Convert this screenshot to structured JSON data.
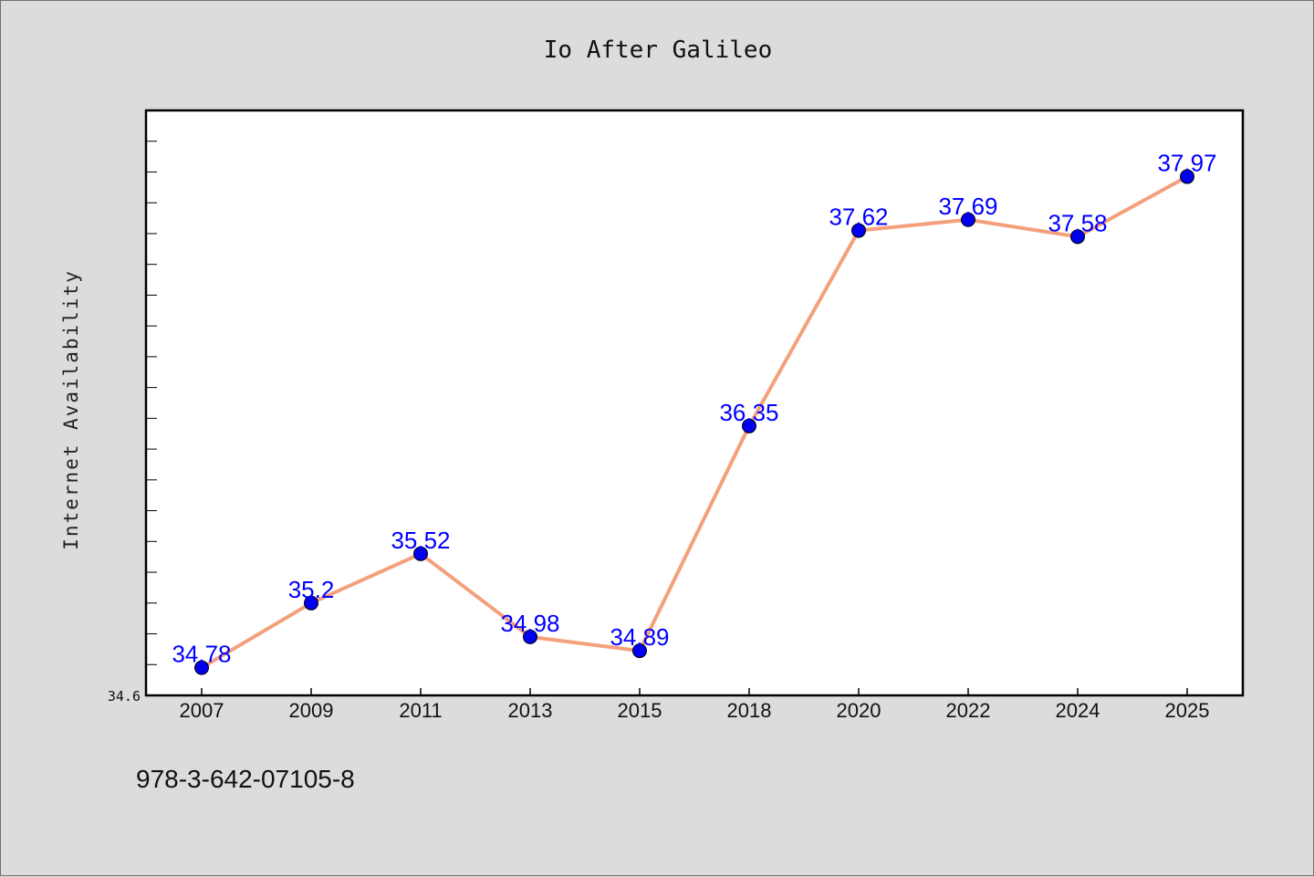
{
  "chart_data": {
    "type": "line",
    "title": "Io After Galileo",
    "xlabel": "",
    "ylabel": "Internet Availability",
    "categories": [
      "2007",
      "2009",
      "2011",
      "2013",
      "2015",
      "2018",
      "2020",
      "2022",
      "2024",
      "2025"
    ],
    "series": [
      {
        "values": [
          34.78,
          35.2,
          35.52,
          34.98,
          34.89,
          36.35,
          37.62,
          37.69,
          37.58,
          37.97
        ],
        "labels": [
          "34.78",
          "35.2",
          "35.52",
          "34.98",
          "34.89",
          "36.35",
          "37.62",
          "37.69",
          "37.58",
          "37.97"
        ],
        "line_color": "#f4a07c",
        "marker_color": "#0000ee",
        "label_color": "#0000ff"
      }
    ],
    "ylim": [
      34.6,
      38.4
    ],
    "yticks_labeled": [
      "34.6"
    ],
    "grid": false,
    "legend": "none"
  },
  "footer": {
    "isbn": "978-3-642-07105-8"
  },
  "colors": {
    "background": "#dcdcdc",
    "plot_background": "#ffffff",
    "axes": "#000000"
  }
}
